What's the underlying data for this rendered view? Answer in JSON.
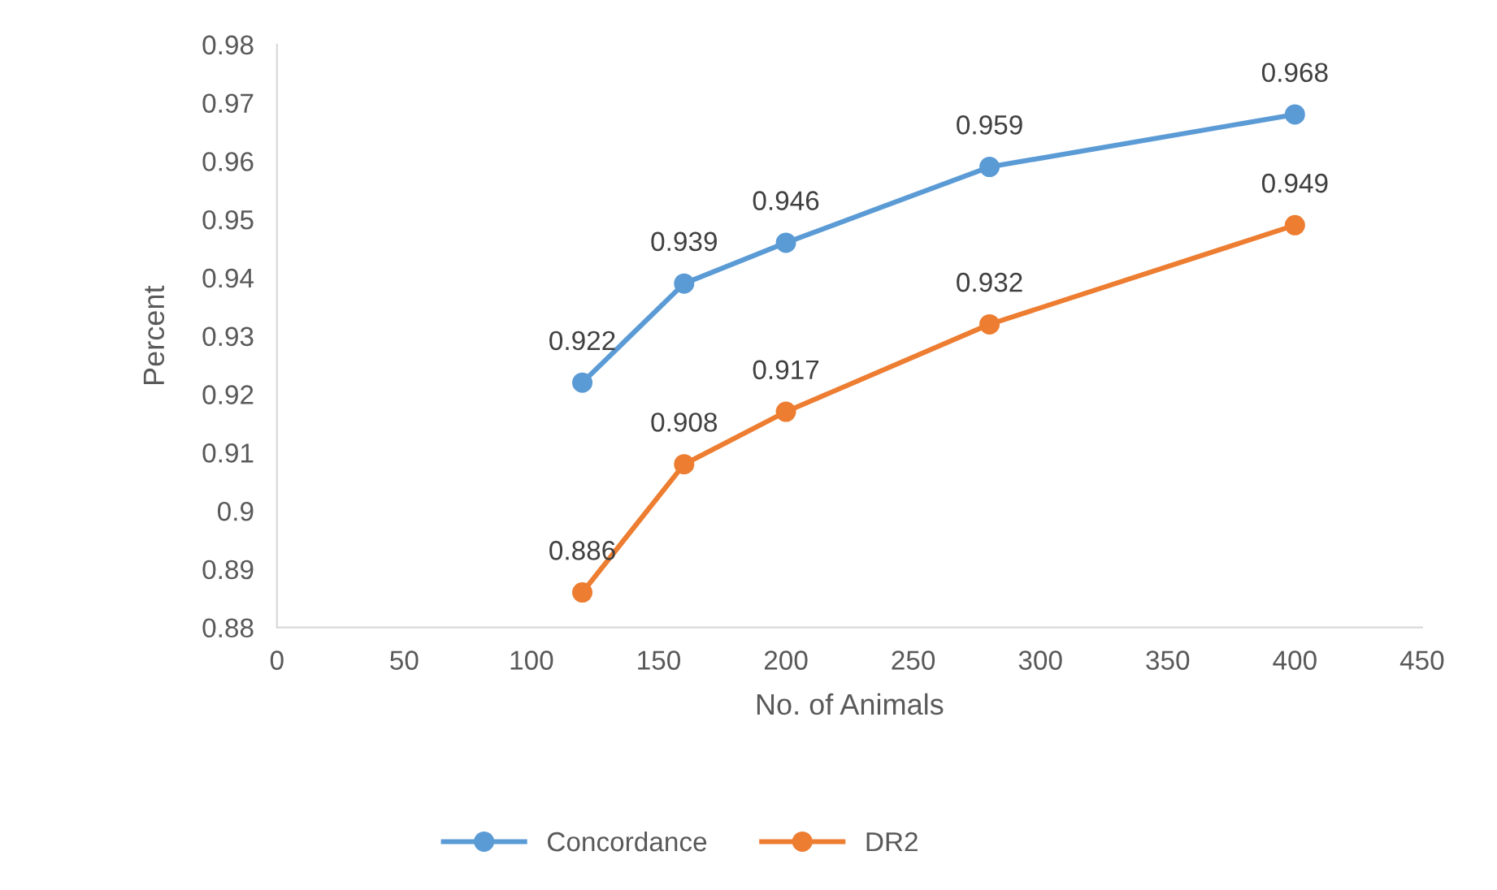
{
  "chart_data": {
    "type": "line",
    "xlabel": "No. of Animals",
    "ylabel": "Percent",
    "x": [
      120,
      160,
      200,
      280,
      400
    ],
    "series": [
      {
        "name": "Concordance",
        "color": "#5b9bd5",
        "values": [
          0.922,
          0.939,
          0.946,
          0.959,
          0.968
        ]
      },
      {
        "name": "DR2",
        "color": "#ed7d31",
        "values": [
          0.886,
          0.908,
          0.917,
          0.932,
          0.949
        ]
      }
    ],
    "xlim": [
      0,
      450
    ],
    "xticks": [
      0,
      50,
      100,
      150,
      200,
      250,
      300,
      350,
      400,
      450
    ],
    "ylim": [
      0.88,
      0.98
    ],
    "yticks": [
      0.88,
      0.89,
      0.9,
      0.91,
      0.92,
      0.93,
      0.94,
      0.95,
      0.96,
      0.97,
      0.98
    ],
    "data_labels": true,
    "grid": false,
    "legend": "bottom",
    "marker": "circle",
    "line_style": "solid"
  }
}
